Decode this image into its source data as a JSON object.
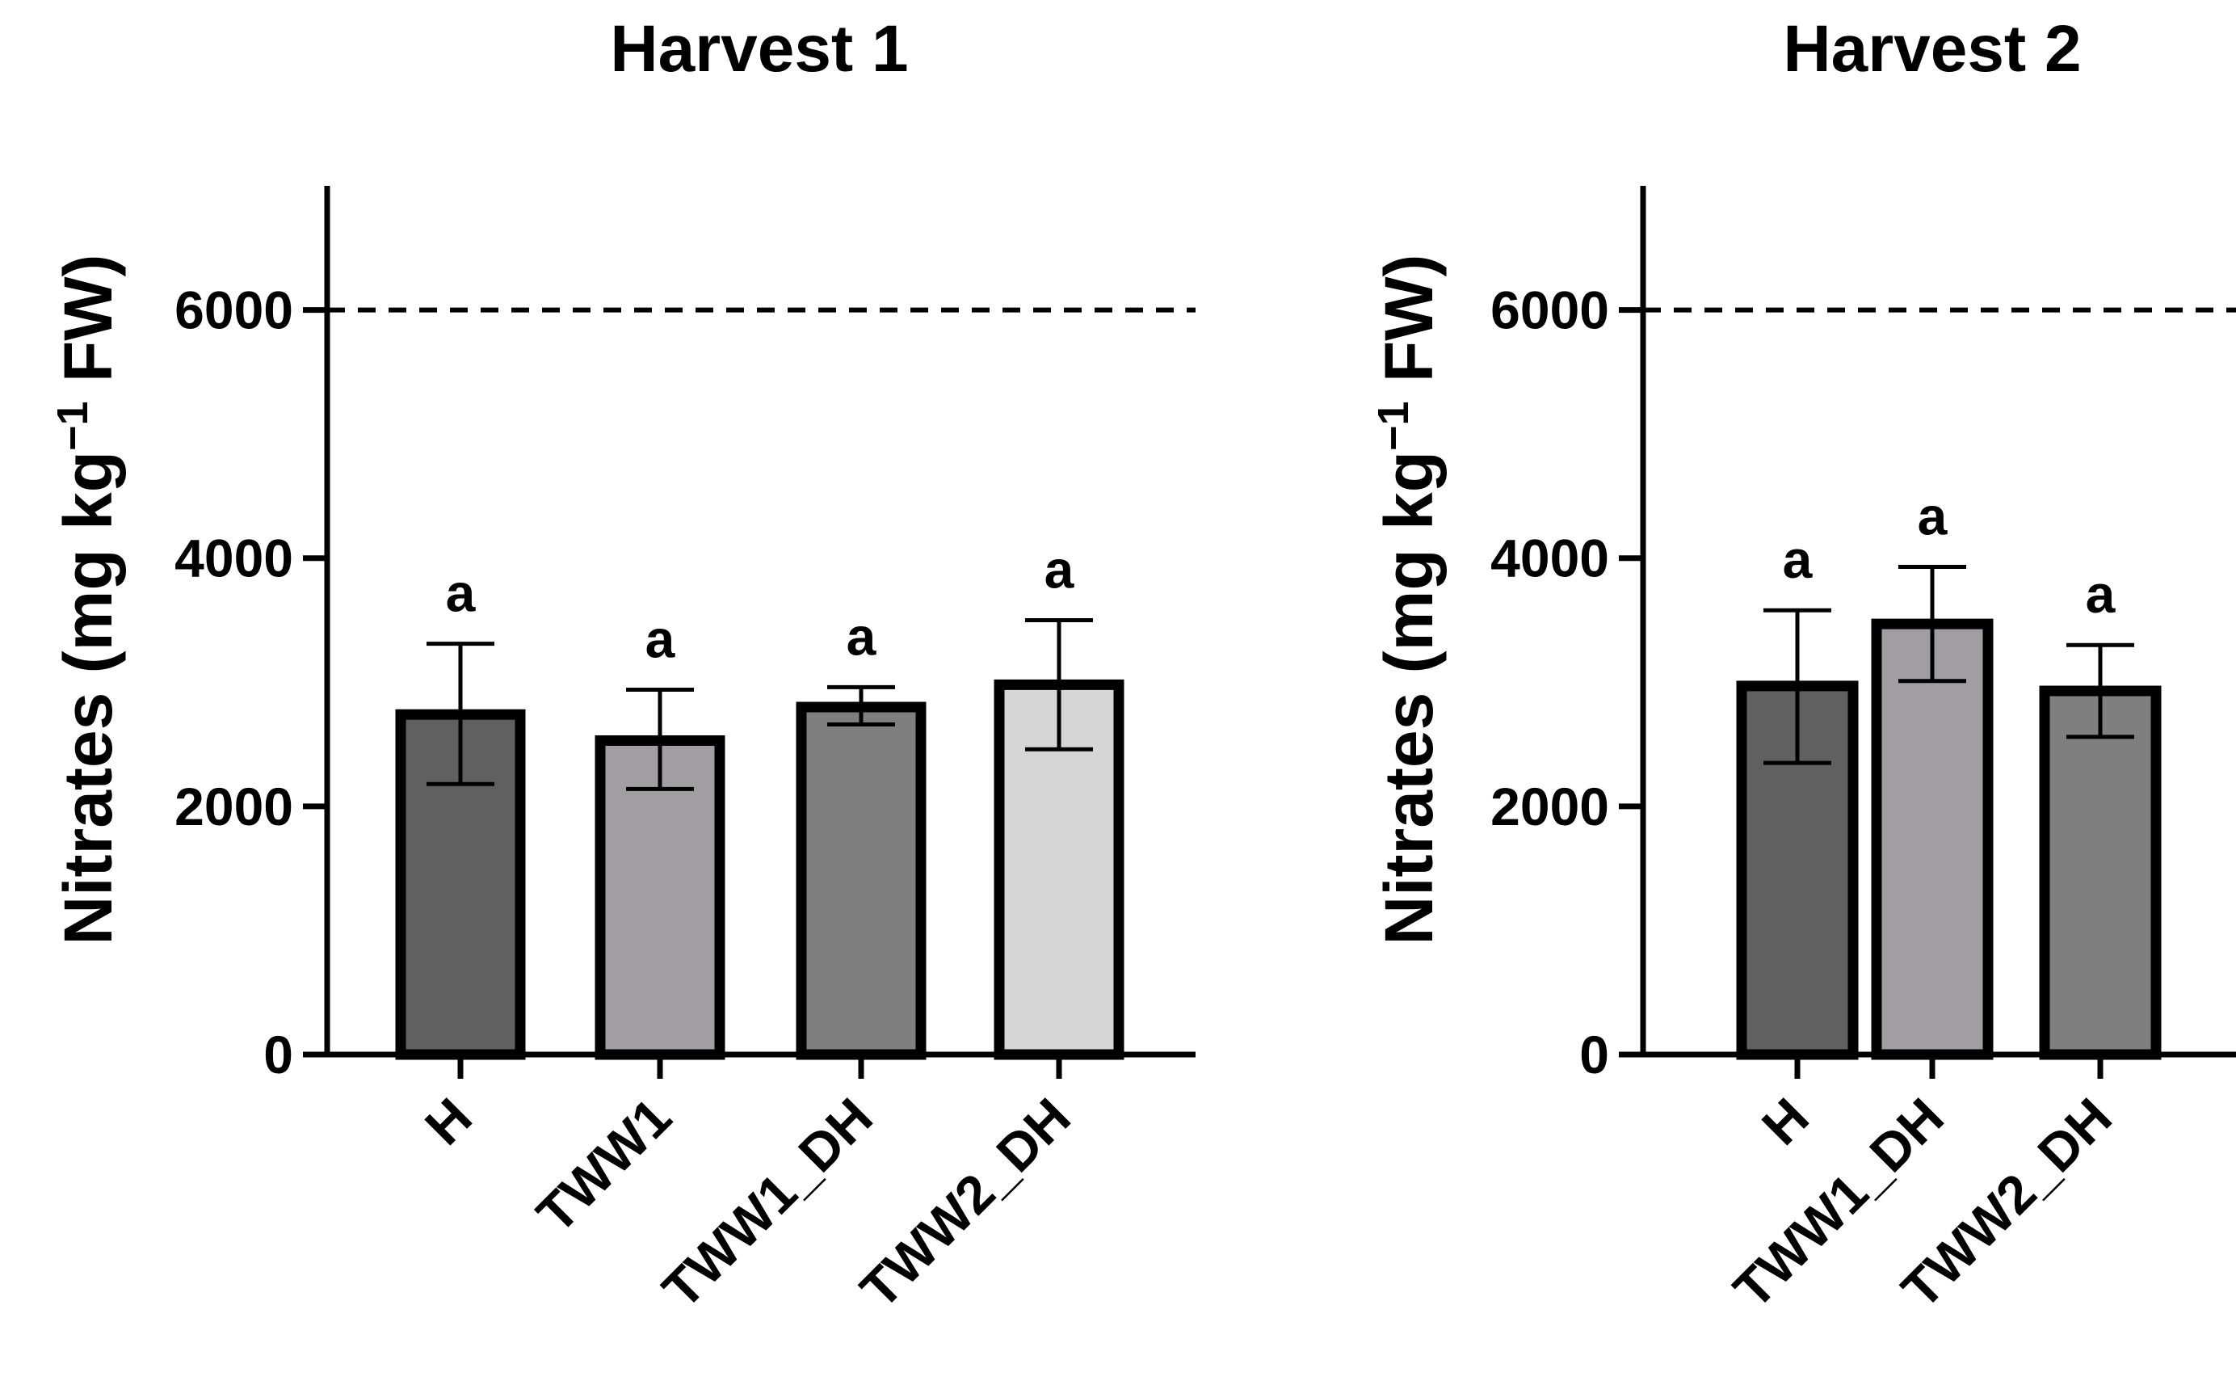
{
  "chart_data": [
    {
      "type": "bar",
      "title": "Harvest 1",
      "ylabel": "Nitrates (mg kg",
      "ylabel_sup": "−1",
      "ylabel_tail": " FW)",
      "xlabel": "",
      "ylim": [
        0,
        7000
      ],
      "yticks": [
        0,
        2000,
        4000,
        6000
      ],
      "ytick_labels": [
        "0",
        "2000",
        "4000",
        "6000"
      ],
      "threshold": 6000,
      "categories": [
        "H",
        "TWW1",
        "TWW1_DH",
        "TWW2_DH"
      ],
      "values": [
        2740,
        2530,
        2800,
        2980
      ],
      "error_low": [
        2180,
        2140,
        2660,
        2460
      ],
      "error_high": [
        3310,
        2940,
        2960,
        3500
      ],
      "significance": [
        "a",
        "a",
        "a",
        "a"
      ],
      "colors": [
        "#606060",
        "#a09ea3",
        "#7f7f7f",
        "#d6d6d6"
      ]
    },
    {
      "type": "bar",
      "title": "Harvest 2",
      "ylabel": "Nitrates (mg kg",
      "ylabel_sup": "−1",
      "ylabel_tail": " FW)",
      "xlabel": "",
      "ylim": [
        0,
        7000
      ],
      "yticks": [
        0,
        2000,
        4000,
        6000
      ],
      "ytick_labels": [
        "0",
        "2000",
        "4000",
        "6000"
      ],
      "threshold": 6000,
      "categories": [
        "H",
        "TWW1_DH",
        "TWW2_DH"
      ],
      "values": [
        2970,
        3470,
        2930
      ],
      "error_low": [
        2350,
        3010,
        2560
      ],
      "error_high": [
        3580,
        3930,
        3300
      ],
      "significance": [
        "a",
        "a",
        "a"
      ],
      "colors": [
        "#606060",
        "#a09ea3",
        "#7f7f7f"
      ]
    }
  ]
}
